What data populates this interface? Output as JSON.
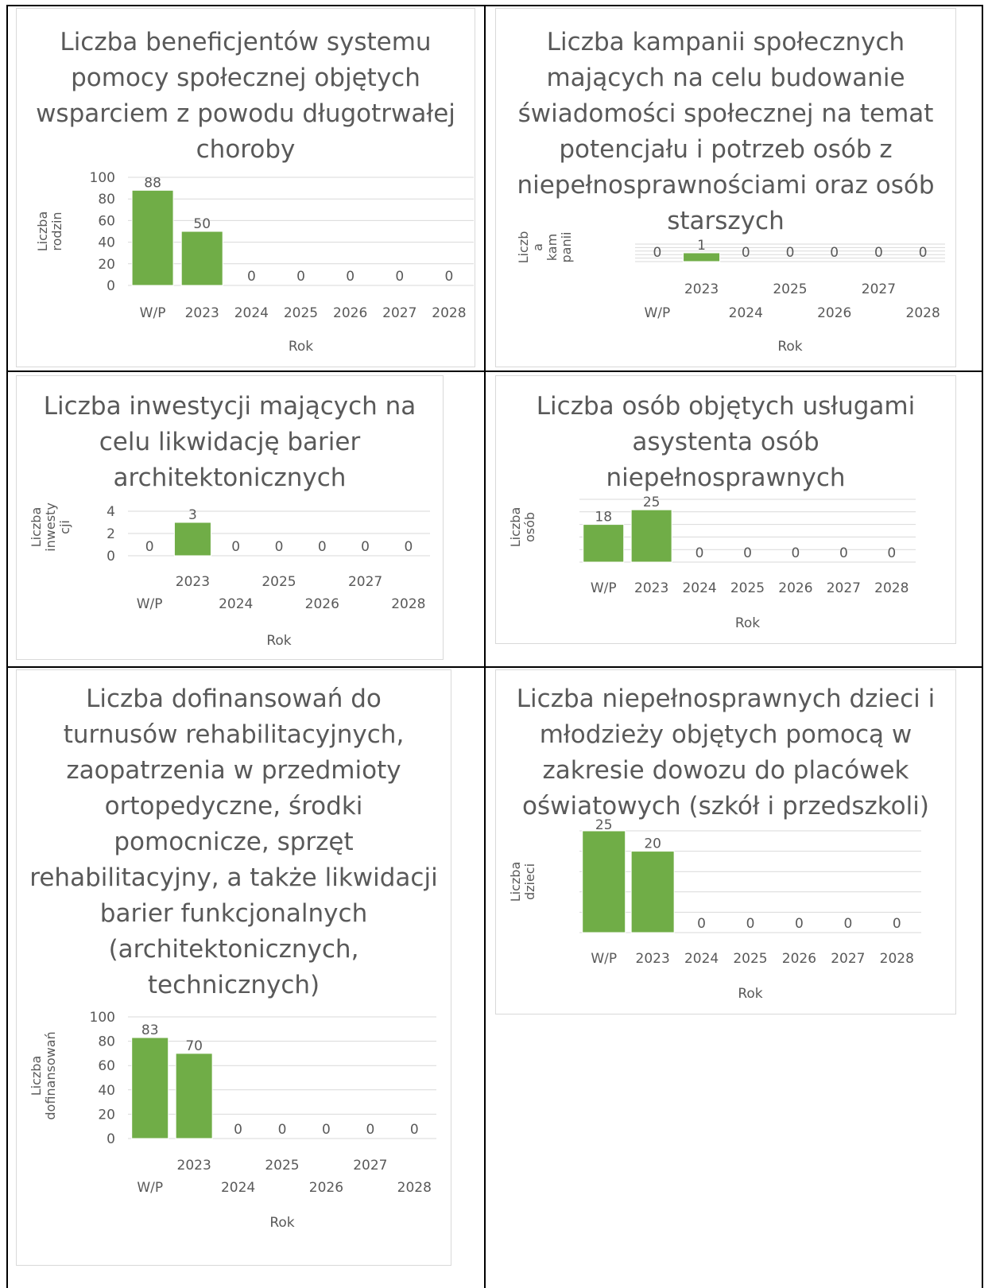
{
  "colors": {
    "bar": "#70ad47",
    "grid": "#d9d9d9",
    "text": "#595959",
    "table_border": "#000000"
  },
  "chart_data": [
    {
      "type": "bar",
      "title_lines": [
        "Liczba beneficjentów systemu",
        "pomocy społecznej objętych",
        "wsparciem z powodu długotrwałej",
        "choroby"
      ],
      "ylabel_lines": [
        "Liczba",
        "rodzin"
      ],
      "xlabel": "Rok",
      "categories": [
        "W/P",
        "2023",
        "2024",
        "2025",
        "2026",
        "2027",
        "2028"
      ],
      "values": [
        88,
        50,
        0,
        0,
        0,
        0,
        0
      ],
      "data_labels": [
        "88",
        "50",
        "0",
        "0",
        "0",
        "0",
        "0"
      ],
      "ylim": [
        0,
        100
      ],
      "yticks": [
        "0",
        "20",
        "40",
        "60",
        "80",
        "100"
      ],
      "grid": true,
      "legend": "none"
    },
    {
      "type": "bar",
      "title_lines": [
        "Liczba kampanii społecznych",
        "mających na celu budowanie",
        "świadomości społecznej na temat",
        "potencjału i potrzeb osób          z",
        "niepełnosprawnościami oraz osób",
        "starszych"
      ],
      "ylabel_lines": [
        "Liczb",
        "a",
        "kam",
        "panii"
      ],
      "xlabel": "Rok",
      "categories": [
        "W/P",
        "2023",
        "2024",
        "2025",
        "2026",
        "2027",
        "2028"
      ],
      "values": [
        0,
        1,
        0,
        0,
        0,
        0,
        0
      ],
      "data_labels": [
        "0",
        "1",
        "0",
        "0",
        "0",
        "0",
        "0"
      ],
      "ylim": [
        0,
        2
      ],
      "yticks": [],
      "grid": true,
      "legend": "none"
    },
    {
      "type": "bar",
      "title_lines": [
        "Liczba inwestycji mających na",
        "celu likwidację barier",
        "architektonicznych"
      ],
      "ylabel_lines": [
        "Liczba",
        "inwesty",
        "cji"
      ],
      "xlabel": "Rok",
      "categories": [
        "W/P",
        "2023",
        "2024",
        "2025",
        "2026",
        "2027",
        "2028"
      ],
      "values": [
        0,
        3,
        0,
        0,
        0,
        0,
        0
      ],
      "data_labels": [
        "0",
        "3",
        "0",
        "0",
        "0",
        "0",
        "0"
      ],
      "ylim": [
        0,
        4
      ],
      "yticks": [
        "0",
        "2",
        "4"
      ],
      "grid": true,
      "legend": "none"
    },
    {
      "type": "bar",
      "title_lines": [
        "Liczba osób objętych usługami",
        "asystenta osób",
        "niepełnosprawnych"
      ],
      "ylabel_lines": [
        "Liczba",
        "osób"
      ],
      "xlabel": "Rok",
      "categories": [
        "W/P",
        "2023",
        "2024",
        "2025",
        "2026",
        "2027",
        "2028"
      ],
      "values": [
        18,
        25,
        0,
        0,
        0,
        0,
        0
      ],
      "data_labels": [
        "18",
        "25",
        "0",
        "0",
        "0",
        "0",
        "0"
      ],
      "ylim": [
        0,
        30
      ],
      "yticks": [],
      "grid": true,
      "legend": "none"
    },
    {
      "type": "bar",
      "title_lines": [
        "Liczba dofinansowań do",
        "turnusów rehabilitacyjnych,",
        "zaopatrzenia   w przedmioty",
        "ortopedyczne, środki",
        "pomocnicze, sprzęt",
        "rehabilitacyjny, a także likwidacji",
        "barier funkcjonalnych",
        "(architektonicznych,",
        "technicznych)"
      ],
      "ylabel_lines": [
        "Liczba",
        "dofinansowań"
      ],
      "xlabel": "Rok",
      "categories": [
        "W/P",
        "2023",
        "2024",
        "2025",
        "2026",
        "2027",
        "2028"
      ],
      "values": [
        83,
        70,
        0,
        0,
        0,
        0,
        0
      ],
      "data_labels": [
        "83",
        "70",
        "0",
        "0",
        "0",
        "0",
        "0"
      ],
      "ylim": [
        0,
        100
      ],
      "yticks": [
        "0",
        "20",
        "40",
        "60",
        "80",
        "100"
      ],
      "grid": true,
      "legend": "none"
    },
    {
      "type": "bar",
      "title_lines": [
        "Liczba niepełnosprawnych dzieci i",
        "młodzieży objętych pomocą        w",
        "zakresie dowozu do placówek",
        "oświatowych (szkół i przedszkoli)"
      ],
      "ylabel_lines": [
        "Liczba",
        "dzieci"
      ],
      "xlabel": "Rok",
      "categories": [
        "W/P",
        "2023",
        "2024",
        "2025",
        "2026",
        "2027",
        "2028"
      ],
      "values": [
        25,
        20,
        0,
        0,
        0,
        0,
        0
      ],
      "data_labels": [
        "25",
        "20",
        "0",
        "0",
        "0",
        "0",
        "0"
      ],
      "ylim": [
        0,
        25
      ],
      "yticks": [],
      "grid": true,
      "legend": "none"
    }
  ]
}
